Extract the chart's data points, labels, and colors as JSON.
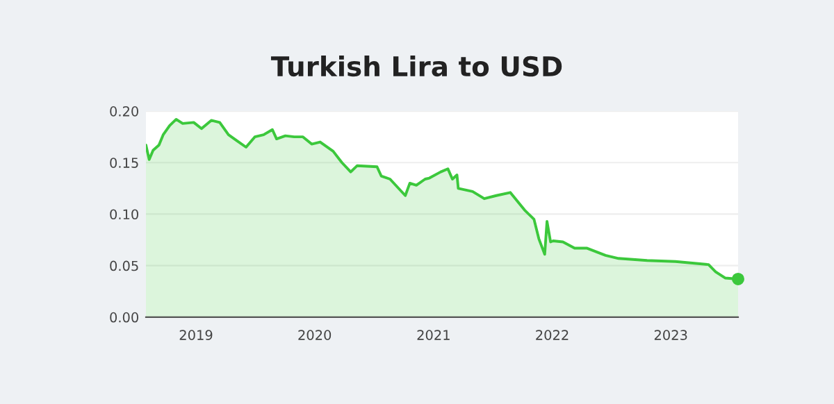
{
  "chart_data": {
    "type": "area",
    "title": "Turkish Lira to USD",
    "x": [
      "2018-07-31",
      "2018-08-10",
      "2018-08-22",
      "2018-09-09",
      "2018-09-22",
      "2018-10-12",
      "2018-11-01",
      "2018-11-21",
      "2018-12-25",
      "2019-01-18",
      "2019-02-17",
      "2019-03-15",
      "2019-04-11",
      "2019-05-08",
      "2019-06-04",
      "2019-07-01",
      "2019-07-28",
      "2019-08-24",
      "2019-09-06",
      "2019-10-03",
      "2019-10-30",
      "2019-11-26",
      "2019-12-23",
      "2020-01-18",
      "2020-02-27",
      "2020-03-25",
      "2020-04-21",
      "2020-05-11",
      "2020-07-11",
      "2020-07-24",
      "2020-08-20",
      "2020-10-06",
      "2020-10-20",
      "2020-11-09",
      "2020-12-06",
      "2020-12-19",
      "2021-01-23",
      "2021-02-14",
      "2021-02-28",
      "2021-03-14",
      "2021-03-18",
      "2021-05-01",
      "2021-06-06",
      "2021-07-13",
      "2021-08-25",
      "2021-10-08",
      "2021-11-06",
      "2021-11-21",
      "2021-12-09",
      "2021-12-16",
      "2021-12-27",
      "2022-01-04",
      "2022-02-03",
      "2022-03-11",
      "2022-04-17",
      "2022-06-14",
      "2022-07-24",
      "2022-10-20",
      "2023-01-15",
      "2023-04-27",
      "2023-05-19",
      "2023-06-17",
      "2023-07-27"
    ],
    "series": [
      {
        "color": "#3cc83c",
        "values": [
          0.167,
          0.153,
          0.162,
          0.167,
          0.177,
          0.186,
          0.192,
          0.188,
          0.189,
          0.183,
          0.191,
          0.189,
          0.177,
          0.171,
          0.165,
          0.175,
          0.177,
          0.182,
          0.173,
          0.176,
          0.175,
          0.175,
          0.168,
          0.17,
          0.161,
          0.15,
          0.141,
          0.147,
          0.146,
          0.137,
          0.134,
          0.118,
          0.13,
          0.128,
          0.134,
          0.135,
          0.141,
          0.144,
          0.134,
          0.138,
          0.125,
          0.122,
          0.115,
          0.118,
          0.121,
          0.104,
          0.095,
          0.076,
          0.061,
          0.093,
          0.073,
          0.074,
          0.073,
          0.067,
          0.067,
          0.06,
          0.057,
          0.055,
          0.054,
          0.051,
          0.044,
          0.038,
          0.037
        ]
      },
      {
        "type": "scatter",
        "color": "#3cc83c",
        "marker": "circle",
        "x": [
          "2023-07-27"
        ],
        "values": [
          0.037
        ]
      }
    ],
    "xlim": [
      "2018-07-31",
      "2023-07-27"
    ],
    "xticks": [
      {
        "value": "2019-01-01",
        "label": "2019"
      },
      {
        "value": "2020-01-01",
        "label": "2020"
      },
      {
        "value": "2021-01-01",
        "label": "2021"
      },
      {
        "value": "2022-01-01",
        "label": "2022"
      },
      {
        "value": "2023-01-01",
        "label": "2023"
      }
    ],
    "ylim": [
      0,
      0.2
    ],
    "yticks": [
      {
        "value": 0,
        "label": "0.00"
      },
      {
        "value": 0.05,
        "label": "0.05"
      },
      {
        "value": 0.1,
        "label": "0.10"
      },
      {
        "value": 0.15,
        "label": "0.15"
      },
      {
        "value": 0.2,
        "label": "0.20"
      }
    ],
    "grid": "y"
  }
}
